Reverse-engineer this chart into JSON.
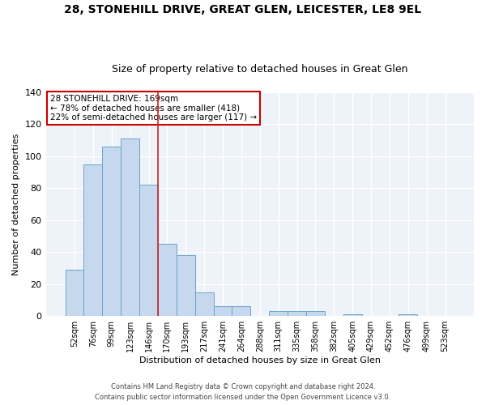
{
  "title": "28, STONEHILL DRIVE, GREAT GLEN, LEICESTER, LE8 9EL",
  "subtitle": "Size of property relative to detached houses in Great Glen",
  "xlabel": "Distribution of detached houses by size in Great Glen",
  "ylabel": "Number of detached properties",
  "categories": [
    "52sqm",
    "76sqm",
    "99sqm",
    "123sqm",
    "146sqm",
    "170sqm",
    "193sqm",
    "217sqm",
    "241sqm",
    "264sqm",
    "288sqm",
    "311sqm",
    "335sqm",
    "358sqm",
    "382sqm",
    "405sqm",
    "429sqm",
    "452sqm",
    "476sqm",
    "499sqm",
    "523sqm"
  ],
  "values": [
    29,
    95,
    106,
    111,
    82,
    45,
    38,
    15,
    6,
    6,
    0,
    3,
    3,
    3,
    0,
    1,
    0,
    0,
    1,
    0,
    0
  ],
  "bar_color": "#c5d8ed",
  "bar_edge_color": "#6ba3cc",
  "highlight_line_index": 5,
  "highlight_line_color": "#cc2222",
  "annotation_box_edge_color": "#cc0000",
  "annotation_text_line1": "28 STONEHILL DRIVE: 169sqm",
  "annotation_text_line2": "← 78% of detached houses are smaller (418)",
  "annotation_text_line3": "22% of semi-detached houses are larger (117) →",
  "ylim": [
    0,
    140
  ],
  "yticks": [
    0,
    20,
    40,
    60,
    80,
    100,
    120,
    140
  ],
  "background_color": "#eef2f9",
  "title_fontsize": 10,
  "subtitle_fontsize": 9,
  "footer_line1": "Contains HM Land Registry data © Crown copyright and database right 2024.",
  "footer_line2": "Contains public sector information licensed under the Open Government Licence v3.0.",
  "grid_color": "#ffffff",
  "ylabel_fontsize": 8,
  "xlabel_fontsize": 8
}
